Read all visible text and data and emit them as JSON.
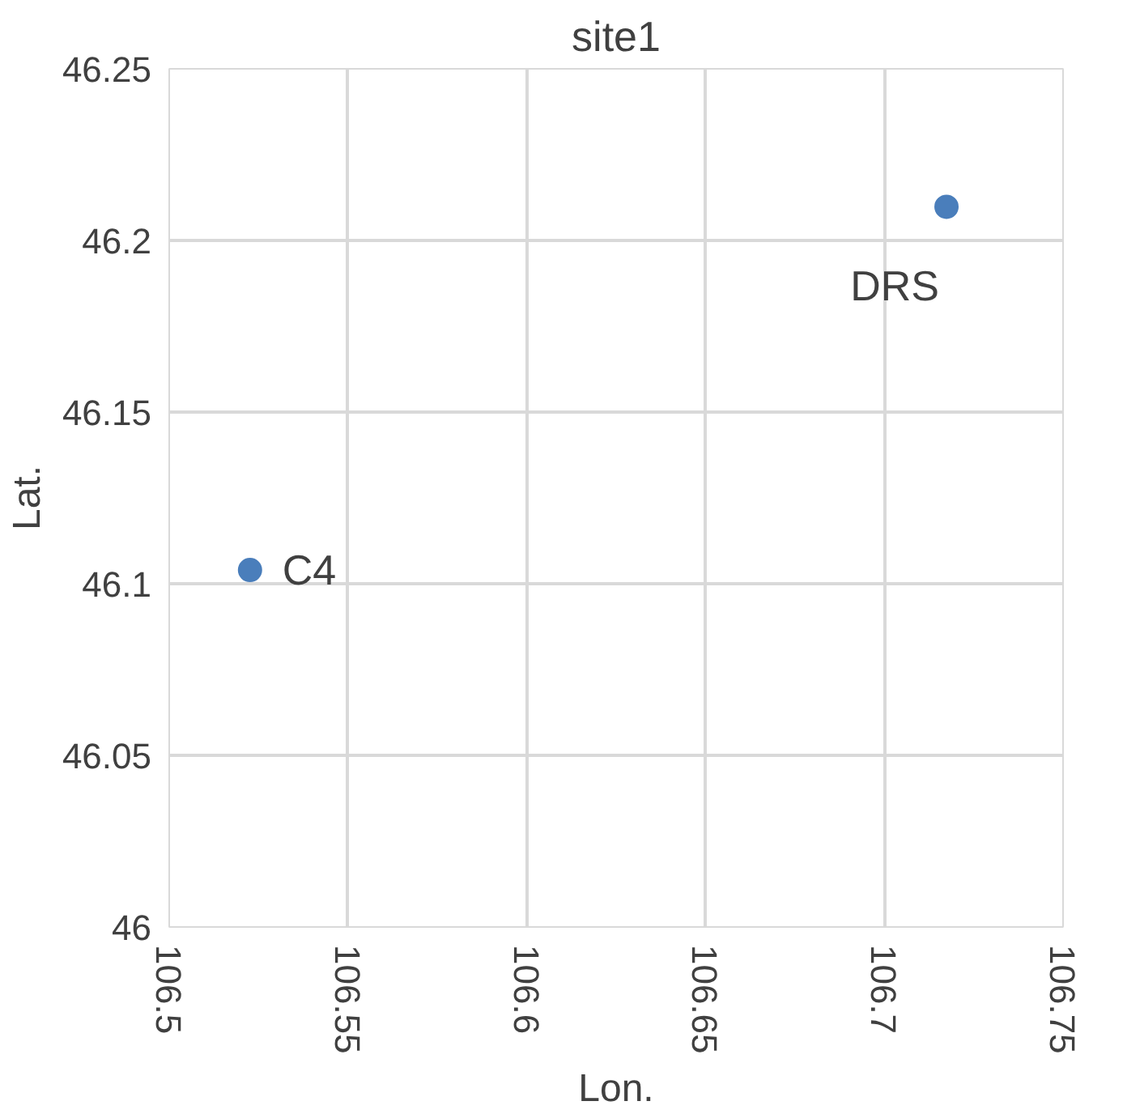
{
  "chart_data": {
    "type": "scatter",
    "title": "site1",
    "xlabel": "Lon.",
    "ylabel": "Lat.",
    "x": [
      106.5226,
      106.7174
    ],
    "series": [
      {
        "color": "#4a7ebb",
        "values": [
          46.104,
          46.2098
        ]
      }
    ],
    "annotations": [
      {
        "text": "C4",
        "x": 106.5226,
        "y": 46.104
      },
      {
        "text": "DRS",
        "x": 106.7174,
        "y": 46.2098
      }
    ],
    "xlim": [
      106.5,
      106.75
    ],
    "xticks": [
      106.5,
      106.55,
      106.6,
      106.65,
      106.7,
      106.75
    ],
    "ylim": [
      46,
      46.25
    ],
    "yticks": [
      46,
      46.05,
      46.1,
      46.15,
      46.2,
      46.25
    ],
    "grid": true,
    "marker": "circle"
  }
}
